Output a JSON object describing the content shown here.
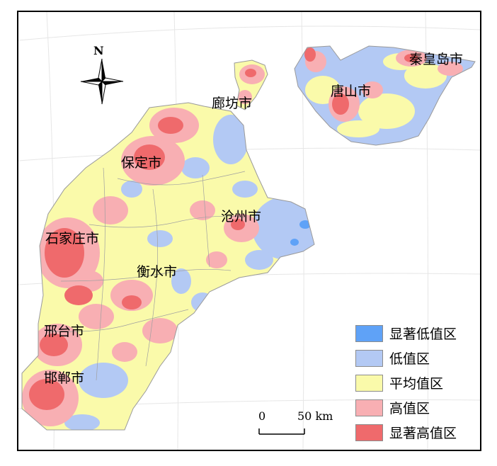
{
  "map": {
    "north_label": "N",
    "scale": {
      "zero_label": "0",
      "distance_label": "50 km"
    },
    "cities": [
      {
        "id": "qinhuangdao",
        "name": "秦皇岛市"
      },
      {
        "id": "tangshan",
        "name": "唐山市"
      },
      {
        "id": "langfang",
        "name": "廊坊市"
      },
      {
        "id": "baoding",
        "name": "保定市"
      },
      {
        "id": "cangzhou",
        "name": "沧州市"
      },
      {
        "id": "shijiazhuang",
        "name": "石家庄市"
      },
      {
        "id": "hengshui",
        "name": "衡水市"
      },
      {
        "id": "xingtai",
        "name": "邢台市"
      },
      {
        "id": "handan",
        "name": "邯郸市"
      }
    ],
    "legend": [
      {
        "label": "显著低值区",
        "color": "#5fa2f7"
      },
      {
        "label": "低值区",
        "color": "#b3c9f4"
      },
      {
        "label": "平均值区",
        "color": "#fafaaa"
      },
      {
        "label": "高值区",
        "color": "#f8afb3"
      },
      {
        "label": "显著高值区",
        "color": "#ef6a6c"
      }
    ]
  }
}
